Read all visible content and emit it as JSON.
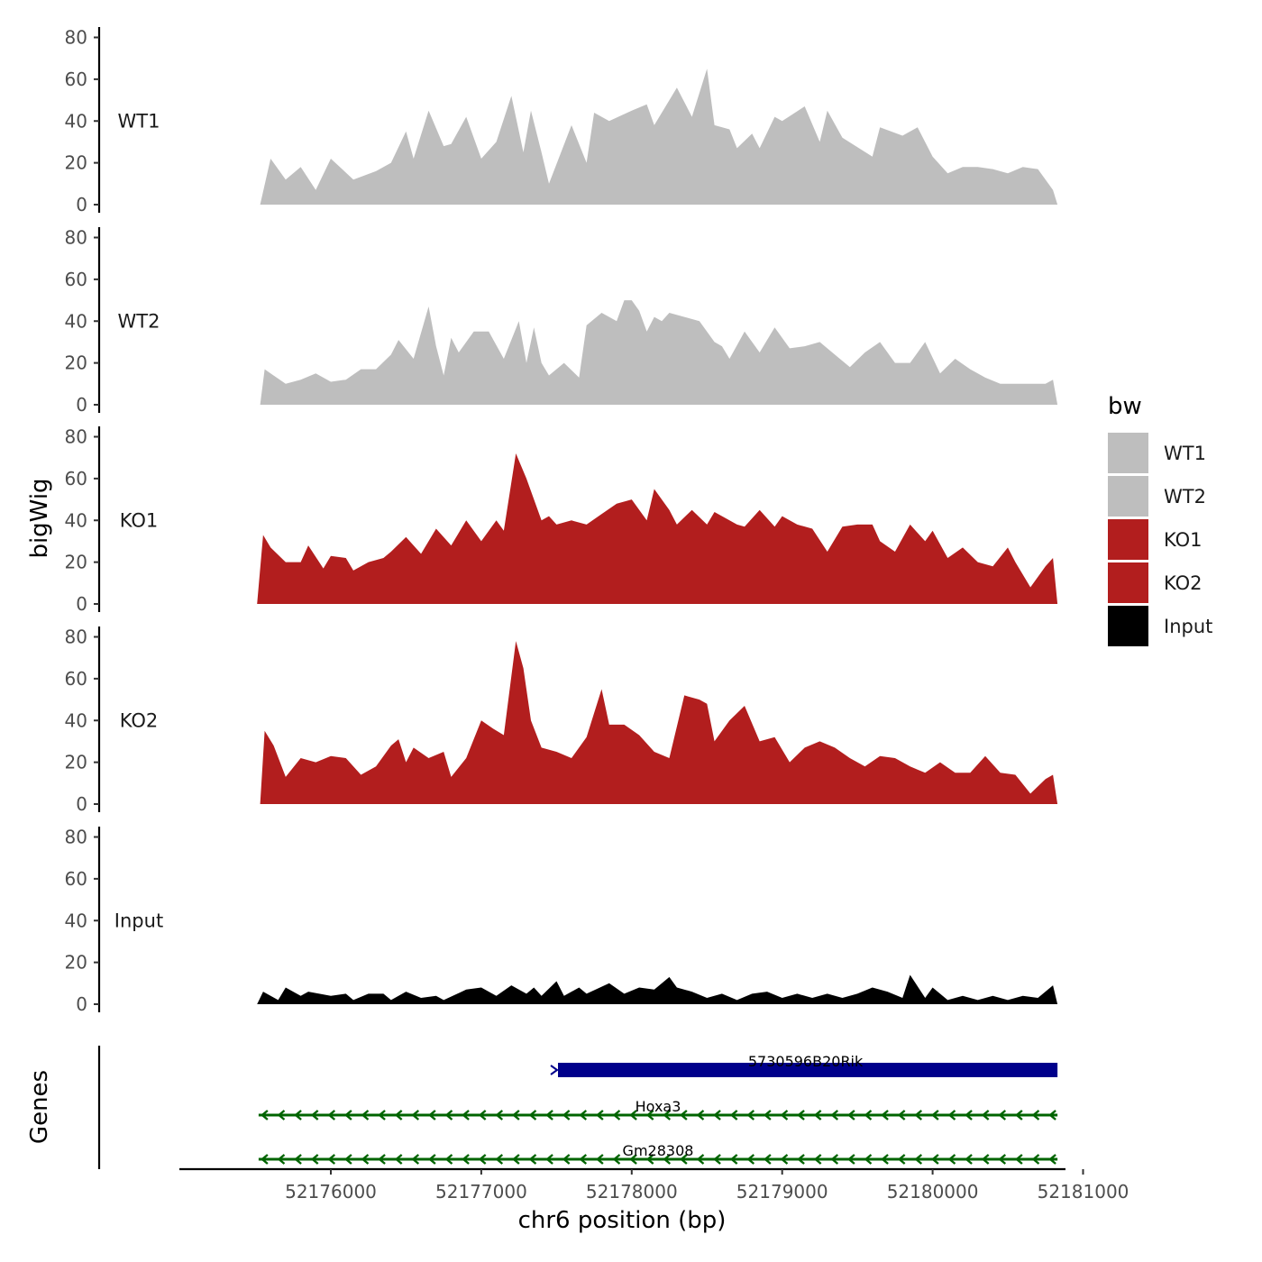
{
  "chart_data": {
    "type": "area",
    "title": "",
    "xlabel": "chr6 position (bp)",
    "ylabel": "bigWig",
    "genes_label": "Genes",
    "xlim": [
      52175200,
      52181100
    ],
    "ylim": [
      0,
      80
    ],
    "x_ticks": [
      52176000,
      52177000,
      52178000,
      52179000,
      52180000,
      52181000
    ],
    "x_tick_labels": [
      "52176000",
      "52177000",
      "52178000",
      "52179000",
      "52180000",
      "52181000"
    ],
    "y_ticks": [
      0,
      20,
      40,
      60,
      80
    ],
    "y_tick_labels": [
      "0",
      "20",
      "40",
      "60",
      "80"
    ],
    "legend": {
      "title": "bw",
      "position": "right",
      "entries": [
        {
          "label": "WT1",
          "color": "#bebebe"
        },
        {
          "label": "WT2",
          "color": "#bebebe"
        },
        {
          "label": "KO1",
          "color": "#b21e1e"
        },
        {
          "label": "KO2",
          "color": "#b21e1e"
        },
        {
          "label": "Input",
          "color": "#000000"
        }
      ]
    },
    "series": [
      {
        "name": "WT1",
        "color": "#bebebe",
        "x": [
          52175530,
          52175600,
          52175700,
          52175800,
          52175900,
          52176000,
          52176150,
          52176300,
          52176400,
          52176500,
          52176550,
          52176650,
          52176750,
          52176800,
          52176900,
          52177000,
          52177100,
          52177200,
          52177280,
          52177330,
          52177400,
          52177450,
          52177600,
          52177700,
          52177750,
          52177850,
          52178000,
          52178100,
          52178150,
          52178300,
          52178400,
          52178500,
          52178550,
          52178650,
          52178700,
          52178800,
          52178850,
          52178950,
          52179000,
          52179150,
          52179250,
          52179300,
          52179400,
          52179600,
          52179650,
          52179800,
          52179900,
          52180000,
          52180100,
          52180200,
          52180300,
          52180400,
          52180500,
          52180600,
          52180700,
          52180800,
          52180830
        ],
        "values": [
          0,
          22,
          12,
          18,
          7,
          22,
          12,
          16,
          20,
          35,
          22,
          45,
          28,
          29,
          42,
          22,
          30,
          52,
          25,
          45,
          25,
          10,
          38,
          20,
          44,
          40,
          45,
          48,
          38,
          56,
          42,
          65,
          38,
          36,
          27,
          34,
          27,
          42,
          40,
          47,
          30,
          45,
          32,
          23,
          37,
          33,
          37,
          23,
          15,
          18,
          18,
          17,
          15,
          18,
          17,
          7,
          0
        ]
      },
      {
        "name": "WT2",
        "color": "#bebebe",
        "x": [
          52175530,
          52175560,
          52175600,
          52175700,
          52175800,
          52175900,
          52176000,
          52176100,
          52176200,
          52176300,
          52176400,
          52176450,
          52176550,
          52176650,
          52176700,
          52176750,
          52176800,
          52176850,
          52176950,
          52177050,
          52177150,
          52177250,
          52177300,
          52177350,
          52177400,
          52177450,
          52177550,
          52177650,
          52177700,
          52177800,
          52177900,
          52177950,
          52178000,
          52178050,
          52178100,
          52178150,
          52178200,
          52178250,
          52178350,
          52178450,
          52178550,
          52178600,
          52178650,
          52178750,
          52178850,
          52178950,
          52179050,
          52179150,
          52179250,
          52179350,
          52179450,
          52179550,
          52179650,
          52179750,
          52179850,
          52179950,
          52180050,
          52180150,
          52180250,
          52180350,
          52180450,
          52180550,
          52180650,
          52180750,
          52180800,
          52180830
        ],
        "values": [
          0,
          17,
          15,
          10,
          12,
          15,
          11,
          12,
          17,
          17,
          24,
          31,
          22,
          47,
          28,
          14,
          32,
          25,
          35,
          35,
          22,
          40,
          20,
          37,
          20,
          14,
          20,
          13,
          38,
          44,
          40,
          50,
          50,
          45,
          35,
          42,
          40,
          44,
          42,
          40,
          30,
          28,
          22,
          35,
          25,
          37,
          27,
          28,
          30,
          24,
          18,
          25,
          30,
          20,
          20,
          30,
          15,
          22,
          17,
          13,
          10,
          10,
          10,
          10,
          12,
          0
        ]
      },
      {
        "name": "KO1",
        "color": "#b21e1e",
        "x": [
          52175510,
          52175550,
          52175600,
          52175700,
          52175800,
          52175850,
          52175950,
          52176000,
          52176100,
          52176150,
          52176250,
          52176350,
          52176400,
          52176500,
          52176600,
          52176700,
          52176800,
          52176900,
          52177000,
          52177100,
          52177150,
          52177230,
          52177300,
          52177400,
          52177450,
          52177500,
          52177600,
          52177700,
          52177800,
          52177900,
          52178000,
          52178100,
          52178150,
          52178250,
          52178300,
          52178400,
          52178500,
          52178550,
          52178650,
          52178700,
          52178750,
          52178850,
          52178950,
          52179000,
          52179100,
          52179200,
          52179300,
          52179400,
          52179500,
          52179600,
          52179650,
          52179750,
          52179850,
          52179950,
          52180000,
          52180100,
          52180200,
          52180300,
          52180400,
          52180500,
          52180550,
          52180650,
          52180750,
          52180800,
          52180830
        ],
        "values": [
          0,
          33,
          27,
          20,
          20,
          28,
          17,
          23,
          22,
          16,
          20,
          22,
          25,
          32,
          24,
          36,
          28,
          40,
          30,
          40,
          35,
          72,
          60,
          40,
          42,
          38,
          40,
          38,
          43,
          48,
          50,
          40,
          55,
          45,
          38,
          45,
          38,
          44,
          40,
          38,
          37,
          45,
          37,
          42,
          38,
          36,
          25,
          37,
          38,
          38,
          30,
          25,
          38,
          30,
          35,
          22,
          27,
          20,
          18,
          27,
          20,
          8,
          18,
          22,
          0
        ]
      },
      {
        "name": "KO2",
        "color": "#b21e1e",
        "x": [
          52175530,
          52175560,
          52175620,
          52175700,
          52175800,
          52175900,
          52176000,
          52176100,
          52176200,
          52176300,
          52176400,
          52176450,
          52176500,
          52176550,
          52176650,
          52176750,
          52176800,
          52176900,
          52177000,
          52177080,
          52177150,
          52177230,
          52177280,
          52177330,
          52177400,
          52177500,
          52177600,
          52177700,
          52177800,
          52177850,
          52177950,
          52178050,
          52178150,
          52178250,
          52178350,
          52178450,
          52178500,
          52178550,
          52178650,
          52178750,
          52178850,
          52178950,
          52179050,
          52179150,
          52179250,
          52179350,
          52179450,
          52179550,
          52179650,
          52179750,
          52179850,
          52179950,
          52180050,
          52180150,
          52180250,
          52180350,
          52180450,
          52180550,
          52180650,
          52180750,
          52180800,
          52180830
        ],
        "values": [
          0,
          35,
          28,
          13,
          22,
          20,
          23,
          22,
          14,
          18,
          28,
          31,
          20,
          27,
          22,
          25,
          13,
          22,
          40,
          36,
          33,
          78,
          65,
          40,
          27,
          25,
          22,
          32,
          55,
          38,
          38,
          33,
          25,
          22,
          52,
          50,
          48,
          30,
          40,
          47,
          30,
          32,
          20,
          27,
          30,
          27,
          22,
          18,
          23,
          22,
          18,
          15,
          20,
          15,
          15,
          23,
          15,
          14,
          5,
          12,
          14,
          0
        ]
      },
      {
        "name": "Input",
        "color": "#000000",
        "x": [
          52175510,
          52175550,
          52175650,
          52175700,
          52175800,
          52175850,
          52176000,
          52176100,
          52176150,
          52176250,
          52176350,
          52176400,
          52176500,
          52176600,
          52176700,
          52176750,
          52176900,
          52177000,
          52177100,
          52177200,
          52177300,
          52177350,
          52177400,
          52177500,
          52177550,
          52177650,
          52177700,
          52177850,
          52177950,
          52178050,
          52178150,
          52178250,
          52178300,
          52178400,
          52178500,
          52178600,
          52178700,
          52178800,
          52178900,
          52179000,
          52179100,
          52179200,
          52179300,
          52179400,
          52179500,
          52179600,
          52179700,
          52179800,
          52179850,
          52179950,
          52180000,
          52180100,
          52180200,
          52180300,
          52180400,
          52180500,
          52180600,
          52180700,
          52180800,
          52180830
        ],
        "values": [
          0,
          6,
          2,
          8,
          4,
          6,
          4,
          5,
          2,
          5,
          5,
          2,
          6,
          3,
          4,
          2,
          7,
          8,
          4,
          9,
          5,
          8,
          4,
          11,
          4,
          8,
          5,
          10,
          5,
          8,
          7,
          13,
          8,
          6,
          3,
          5,
          2,
          5,
          6,
          3,
          5,
          3,
          5,
          3,
          5,
          8,
          6,
          3,
          14,
          3,
          8,
          2,
          4,
          2,
          4,
          2,
          4,
          3,
          9,
          0
        ]
      }
    ],
    "genes": [
      {
        "name": "5730596B20Rik",
        "start": 52177480,
        "end": 52180830,
        "strand": "+",
        "color": "#00008b",
        "style": "thick"
      },
      {
        "name": "Hoxa3",
        "start": 52175520,
        "end": 52180830,
        "strand": "-",
        "color": "#006400",
        "style": "line"
      },
      {
        "name": "Gm28308",
        "start": 52175520,
        "end": 52180830,
        "strand": "-",
        "color": "#006400",
        "style": "line"
      }
    ]
  }
}
